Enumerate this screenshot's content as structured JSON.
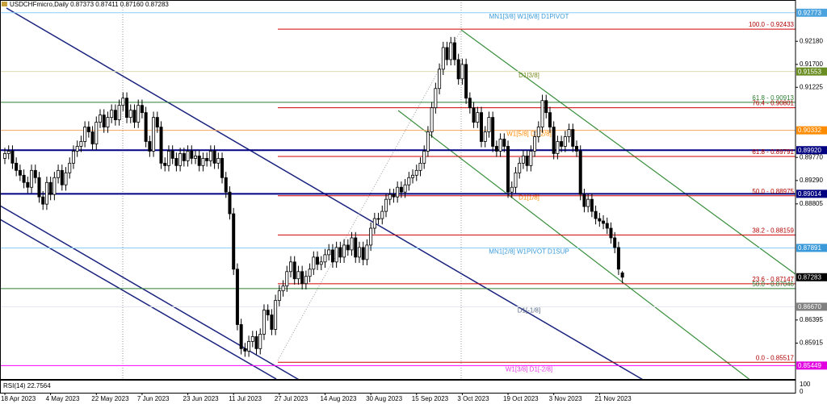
{
  "chart_data": {
    "type": "candlestick",
    "title": "USDCHFmicro,Daily  0.87373 0.87411 0.87160 0.87283",
    "up_color": "#ffffff",
    "down_color": "#000000",
    "grid": false,
    "ylim": [
      0.8517,
      0.9287
    ],
    "yticks": [
      {
        "value": 0.9218,
        "label": "0.92180"
      },
      {
        "value": 0.917,
        "label": "0.91700"
      },
      0.91225,
      {
        "value": 0.8977,
        "label": "0.89770"
      },
      {
        "value": 0.8929,
        "label": "0.89290"
      },
      0.88805,
      0.86395,
      0.85915
    ],
    "categories": [
      "18 Apr 2023",
      null,
      null,
      null,
      null,
      null,
      null,
      null,
      null,
      null,
      null,
      null,
      "4 May 2023",
      null,
      null,
      null,
      null,
      null,
      null,
      null,
      null,
      null,
      null,
      null,
      "22 May 2023",
      null,
      null,
      null,
      null,
      null,
      null,
      null,
      null,
      null,
      null,
      null,
      "7 Jun 2023",
      null,
      null,
      null,
      null,
      null,
      null,
      null,
      null,
      null,
      null,
      null,
      "23 Jun 2023",
      null,
      null,
      null,
      null,
      null,
      null,
      null,
      null,
      null,
      null,
      null,
      "11 Jul 2023",
      null,
      null,
      null,
      null,
      null,
      null,
      null,
      null,
      null,
      null,
      null,
      "27 Jul 2023",
      null,
      null,
      null,
      null,
      null,
      null,
      null,
      null,
      null,
      null,
      null,
      "14 Aug 2023",
      null,
      null,
      null,
      null,
      null,
      null,
      null,
      null,
      null,
      null,
      null,
      "30 Aug 2023",
      null,
      null,
      null,
      null,
      null,
      null,
      null,
      null,
      null,
      null,
      null,
      "15 Sep 2023",
      null,
      null,
      null,
      null,
      null,
      null,
      null,
      null,
      null,
      null,
      null,
      "3 Oct 2023",
      null,
      null,
      null,
      null,
      null,
      null,
      null,
      null,
      null,
      null,
      null,
      "19 Oct 2023",
      null,
      null,
      null,
      null,
      null,
      null,
      null,
      null,
      null,
      null,
      null,
      "3 Nov 2023",
      null,
      null,
      null,
      null,
      null,
      null,
      null,
      null,
      null,
      null,
      null,
      "21 Nov 2023",
      null,
      null,
      null,
      null,
      null,
      null
    ],
    "open": [
      0.8975,
      0.8985,
      0.899,
      0.8965,
      0.895,
      0.894,
      0.8925,
      0.8915,
      0.895,
      0.8935,
      0.8895,
      0.888,
      0.8925,
      0.89,
      0.8935,
      0.895,
      0.892,
      0.8945,
      0.8965,
      0.899,
      0.9,
      0.901,
      0.904,
      0.903,
      0.9005,
      0.905,
      0.9065,
      0.904,
      0.906,
      0.9075,
      0.9055,
      0.9085,
      0.91,
      0.906,
      0.9075,
      0.905,
      0.9085,
      0.907,
      0.901,
      0.899,
      0.906,
      0.904,
      0.8965,
      0.896,
      0.899,
      0.8975,
      0.896,
      0.8985,
      0.897,
      0.899,
      0.8975,
      0.898,
      0.896,
      0.8975,
      0.897,
      0.899,
      0.8965,
      0.8975,
      0.8935,
      0.8905,
      0.886,
      0.8745,
      0.863,
      0.858,
      0.8575,
      0.8595,
      0.8605,
      0.858,
      0.861,
      0.866,
      0.865,
      0.862,
      0.868,
      0.87,
      0.871,
      0.874,
      0.876,
      0.8725,
      0.874,
      0.8715,
      0.873,
      0.8745,
      0.877,
      0.8755,
      0.876,
      0.8775,
      0.8785,
      0.876,
      0.879,
      0.877,
      0.8795,
      0.8785,
      0.881,
      0.877,
      0.879,
      0.8765,
      0.8795,
      0.883,
      0.885,
      0.885,
      0.8865,
      0.889,
      0.89,
      0.8895,
      0.8915,
      0.8905,
      0.892,
      0.8935,
      0.894,
      0.895,
      0.8965,
      0.899,
      0.903,
      0.908,
      0.912,
      0.916,
      0.9205,
      0.918,
      0.9215,
      0.918,
      0.914,
      0.917,
      0.91,
      0.908,
      0.905,
      0.907,
      0.901,
      0.903,
      0.906,
      0.9,
      0.899,
      0.9015,
      0.9,
      0.8905,
      0.8915,
      0.8945,
      0.8965,
      0.898,
      0.896,
      0.899,
      0.902,
      0.904,
      0.9095,
      0.907,
      0.904,
      0.8985,
      0.901,
      0.9,
      0.902,
      0.9035,
      0.9,
      0.899,
      0.89,
      0.8875,
      0.889,
      0.8865,
      0.885,
      0.8845,
      0.884,
      0.883,
      0.881,
      0.879,
      0.87373
    ],
    "high": [
      0.8997,
      0.9002,
      0.9002,
      0.8977,
      0.8962,
      0.8952,
      0.8937,
      0.8962,
      0.8962,
      0.8947,
      0.8907,
      0.8937,
      0.8937,
      0.8947,
      0.8962,
      0.8962,
      0.8957,
      0.8977,
      0.9002,
      0.9012,
      0.9022,
      0.9052,
      0.9052,
      0.9042,
      0.9062,
      0.9077,
      0.9077,
      0.9072,
      0.9087,
      0.9087,
      0.9097,
      0.9112,
      0.9112,
      0.9087,
      0.9087,
      0.9097,
      0.9097,
      0.9082,
      0.9022,
      0.9072,
      0.9072,
      0.9052,
      0.8977,
      0.9002,
      0.9002,
      0.8987,
      0.8997,
      0.8997,
      0.9002,
      0.9002,
      0.8992,
      0.8992,
      0.8987,
      0.8987,
      0.9002,
      0.9002,
      0.8987,
      0.8987,
      0.8947,
      0.8917,
      0.8872,
      0.8757,
      0.8642,
      0.8592,
      0.8607,
      0.8617,
      0.8617,
      0.8622,
      0.8672,
      0.8672,
      0.8662,
      0.8692,
      0.8712,
      0.8722,
      0.8752,
      0.8772,
      0.8772,
      0.8752,
      0.8752,
      0.8742,
      0.8757,
      0.8782,
      0.8782,
      0.8772,
      0.8787,
      0.8797,
      0.8797,
      0.8802,
      0.8802,
      0.8807,
      0.8807,
      0.8822,
      0.8822,
      0.8802,
      0.8802,
      0.8807,
      0.8842,
      0.8862,
      0.8862,
      0.8877,
      0.8902,
      0.8912,
      0.8912,
      0.8927,
      0.8927,
      0.8932,
      0.8947,
      0.8952,
      0.8962,
      0.8977,
      0.9002,
      0.9042,
      0.9092,
      0.9132,
      0.9172,
      0.9217,
      0.9217,
      0.9227,
      0.9227,
      0.9192,
      0.9182,
      0.9182,
      0.9112,
      0.9092,
      0.9082,
      0.9082,
      0.9042,
      0.9072,
      0.9072,
      0.9012,
      0.9027,
      0.9027,
      0.9012,
      0.8927,
      0.8957,
      0.8977,
      0.8992,
      0.8992,
      0.9002,
      0.9032,
      0.9052,
      0.9107,
      0.9107,
      0.9082,
      0.9052,
      0.9022,
      0.9022,
      0.9032,
      0.9047,
      0.9047,
      0.9012,
      0.9002,
      0.8912,
      0.8902,
      0.8902,
      0.8877,
      0.8862,
      0.8857,
      0.8852,
      0.8842,
      0.8822,
      0.8802,
      0.87411
    ],
    "low": [
      0.8963,
      0.8973,
      0.8953,
      0.8938,
      0.8928,
      0.8913,
      0.8903,
      0.8903,
      0.8923,
      0.8883,
      0.8868,
      0.8868,
      0.8888,
      0.8888,
      0.8923,
      0.8908,
      0.8908,
      0.8933,
      0.8953,
      0.8978,
      0.8988,
      0.8998,
      0.9018,
      0.8993,
      0.8993,
      0.9038,
      0.9028,
      0.9028,
      0.9048,
      0.9043,
      0.9043,
      0.9073,
      0.9048,
      0.9048,
      0.9038,
      0.9038,
      0.9058,
      0.8998,
      0.8978,
      0.8978,
      0.9028,
      0.8953,
      0.8948,
      0.8948,
      0.8963,
      0.8948,
      0.8948,
      0.8958,
      0.8958,
      0.8963,
      0.8963,
      0.8948,
      0.8948,
      0.8958,
      0.8958,
      0.8953,
      0.8953,
      0.8923,
      0.8893,
      0.8848,
      0.8733,
      0.8618,
      0.8568,
      0.8563,
      0.8563,
      0.8583,
      0.8568,
      0.8568,
      0.8598,
      0.8638,
      0.8608,
      0.8608,
      0.8668,
      0.8688,
      0.8698,
      0.8728,
      0.8713,
      0.8713,
      0.8703,
      0.8703,
      0.8718,
      0.8733,
      0.8743,
      0.8743,
      0.8748,
      0.8763,
      0.8748,
      0.8748,
      0.8758,
      0.8758,
      0.8773,
      0.8773,
      0.8758,
      0.8758,
      0.8753,
      0.8753,
      0.8783,
      0.8818,
      0.8838,
      0.8838,
      0.8853,
      0.8878,
      0.8883,
      0.8883,
      0.8893,
      0.8893,
      0.8908,
      0.8923,
      0.8928,
      0.8938,
      0.8953,
      0.8978,
      0.9018,
      0.9068,
      0.9108,
      0.9148,
      0.9168,
      0.9168,
      0.9168,
      0.9128,
      0.9128,
      0.9088,
      0.9068,
      0.9038,
      0.9038,
      0.8998,
      0.8998,
      0.9018,
      0.8988,
      0.8978,
      0.8978,
      0.8988,
      0.8893,
      0.8893,
      0.8903,
      0.8933,
      0.8953,
      0.8948,
      0.8948,
      0.8978,
      0.9008,
      0.9028,
      0.9058,
      0.9028,
      0.8973,
      0.8973,
      0.8988,
      0.8988,
      0.9008,
      0.8988,
      0.8978,
      0.8888,
      0.8863,
      0.8863,
      0.8853,
      0.8838,
      0.8833,
      0.8828,
      0.8818,
      0.8798,
      0.8778,
      0.8733,
      0.8716
    ],
    "close": [
      0.8985,
      0.899,
      0.8965,
      0.895,
      0.894,
      0.8925,
      0.8915,
      0.895,
      0.8935,
      0.8895,
      0.888,
      0.8925,
      0.89,
      0.8935,
      0.895,
      0.892,
      0.8945,
      0.8965,
      0.899,
      0.9,
      0.901,
      0.904,
      0.903,
      0.9005,
      0.905,
      0.9065,
      0.904,
      0.906,
      0.9075,
      0.9055,
      0.9085,
      0.91,
      0.906,
      0.9075,
      0.905,
      0.9085,
      0.907,
      0.901,
      0.899,
      0.906,
      0.904,
      0.8965,
      0.896,
      0.899,
      0.8975,
      0.896,
      0.8985,
      0.897,
      0.899,
      0.8975,
      0.898,
      0.896,
      0.8975,
      0.897,
      0.899,
      0.8965,
      0.8975,
      0.8935,
      0.8905,
      0.886,
      0.8745,
      0.863,
      0.858,
      0.8575,
      0.8595,
      0.8605,
      0.858,
      0.861,
      0.866,
      0.865,
      0.862,
      0.868,
      0.87,
      0.871,
      0.874,
      0.876,
      0.8725,
      0.874,
      0.8715,
      0.873,
      0.8745,
      0.877,
      0.8755,
      0.876,
      0.8775,
      0.8785,
      0.876,
      0.879,
      0.877,
      0.8795,
      0.8785,
      0.881,
      0.877,
      0.879,
      0.8765,
      0.8795,
      0.883,
      0.885,
      0.885,
      0.8865,
      0.889,
      0.89,
      0.8895,
      0.8915,
      0.8905,
      0.892,
      0.8935,
      0.894,
      0.895,
      0.8965,
      0.899,
      0.903,
      0.908,
      0.912,
      0.916,
      0.9205,
      0.918,
      0.9215,
      0.918,
      0.914,
      0.917,
      0.91,
      0.908,
      0.905,
      0.907,
      0.901,
      0.903,
      0.906,
      0.9,
      0.899,
      0.9015,
      0.9,
      0.8905,
      0.8915,
      0.8945,
      0.8965,
      0.898,
      0.896,
      0.899,
      0.902,
      0.904,
      0.9095,
      0.907,
      0.904,
      0.8985,
      0.901,
      0.9,
      0.902,
      0.9035,
      0.9,
      0.899,
      0.89,
      0.8875,
      0.889,
      0.8865,
      0.885,
      0.8845,
      0.884,
      0.883,
      0.881,
      0.879,
      0.8745,
      0.87283
    ],
    "current_price_color": "#000000",
    "levels": [
      {
        "value": 0.92773,
        "color": "#87cefa",
        "width": 1,
        "label": "MN1[3/8] W1[6/8] D1PIVOT",
        "label_color": "#3a9ad9",
        "box_color": "#4aa3df"
      },
      {
        "value": 0.92433,
        "color": "#d00000",
        "width": 1,
        "anchored": true,
        "label": "100.0 - 0.92433",
        "label_color": "#b00000"
      },
      {
        "value": 0.91553,
        "color": "#dcdcb0",
        "width": 1,
        "label": "D1[3/8]",
        "label_color": "#7a8a20",
        "box_color": "#6b8e23"
      },
      {
        "value": 0.90913,
        "color": "#2e7d32",
        "width": 1,
        "label": "61.8 - 0.90913",
        "label_color": "#2e7d32"
      },
      {
        "value": 0.90801,
        "color": "#d00000",
        "width": 1,
        "anchored": true,
        "label": "76.4 - 0.90801",
        "label_color": "#b00000"
      },
      {
        "value": 0.90332,
        "color": "#f4a460",
        "width": 1,
        "label": "W1[5/8] D1[2/8]",
        "label_color": "#ff8c00",
        "box_color": "#ff8c00"
      },
      {
        "value": 0.8992,
        "value_label": "0.89920",
        "color": "#000080",
        "width": 2,
        "box_color": "#000080"
      },
      {
        "value": 0.89791,
        "color": "#d00000",
        "width": 1,
        "anchored": true,
        "label": "61.8 - 0.89791",
        "label_color": "#b00000"
      },
      {
        "value": 0.89014,
        "color": "#000080",
        "width": 2,
        "label": "D1[1/8]",
        "label_color": "#ff8c00",
        "box_color": "#000080"
      },
      {
        "value": 0.88975,
        "color": "#d00000",
        "width": 1,
        "anchored": true,
        "label": "50.0 - 0.88975",
        "label_color": "#b00000"
      },
      {
        "value": 0.88159,
        "color": "#d00000",
        "width": 1,
        "anchored": true,
        "label": "38.2 - 0.88159",
        "label_color": "#b00000"
      },
      {
        "value": 0.87891,
        "color": "#87cefa",
        "width": 1,
        "label": "MN1[2/8] W1PIVOT D1SUP",
        "label_color": "#3a9ad9",
        "box_color": "#3a9ad9"
      },
      {
        "value": 0.87147,
        "color": "#d00000",
        "width": 1,
        "anchored": true,
        "label": "23.6 - 0.87147",
        "label_color": "#b00000"
      },
      {
        "value": 0.87046,
        "color": "#2e7d32",
        "width": 1,
        "label": "50.0 - 0.87046",
        "label_color": "#2e7d32"
      },
      {
        "value": 0.8667,
        "value_label": "0.86670",
        "color": "#e4e4ee",
        "width": 1,
        "label": "D1[-1/8]",
        "label_color": "#5a6a8a",
        "box_color": "#808080"
      },
      {
        "value": 0.85517,
        "color": "#d00000",
        "width": 1,
        "anchored": true,
        "label": "0.0 - 0.85517",
        "label_color": "#b00000"
      },
      {
        "value": 0.85449,
        "color": "#ff00ff",
        "width": 1,
        "label": "W1[3/8] D1[-2/8]",
        "label_color": "#e040e0",
        "box_color": "#e000e0"
      }
    ],
    "rsi": {
      "title": "RSI(14) 22.7564",
      "ylim": [
        0,
        100
      ],
      "yticks": [
        100,
        0
      ]
    }
  }
}
